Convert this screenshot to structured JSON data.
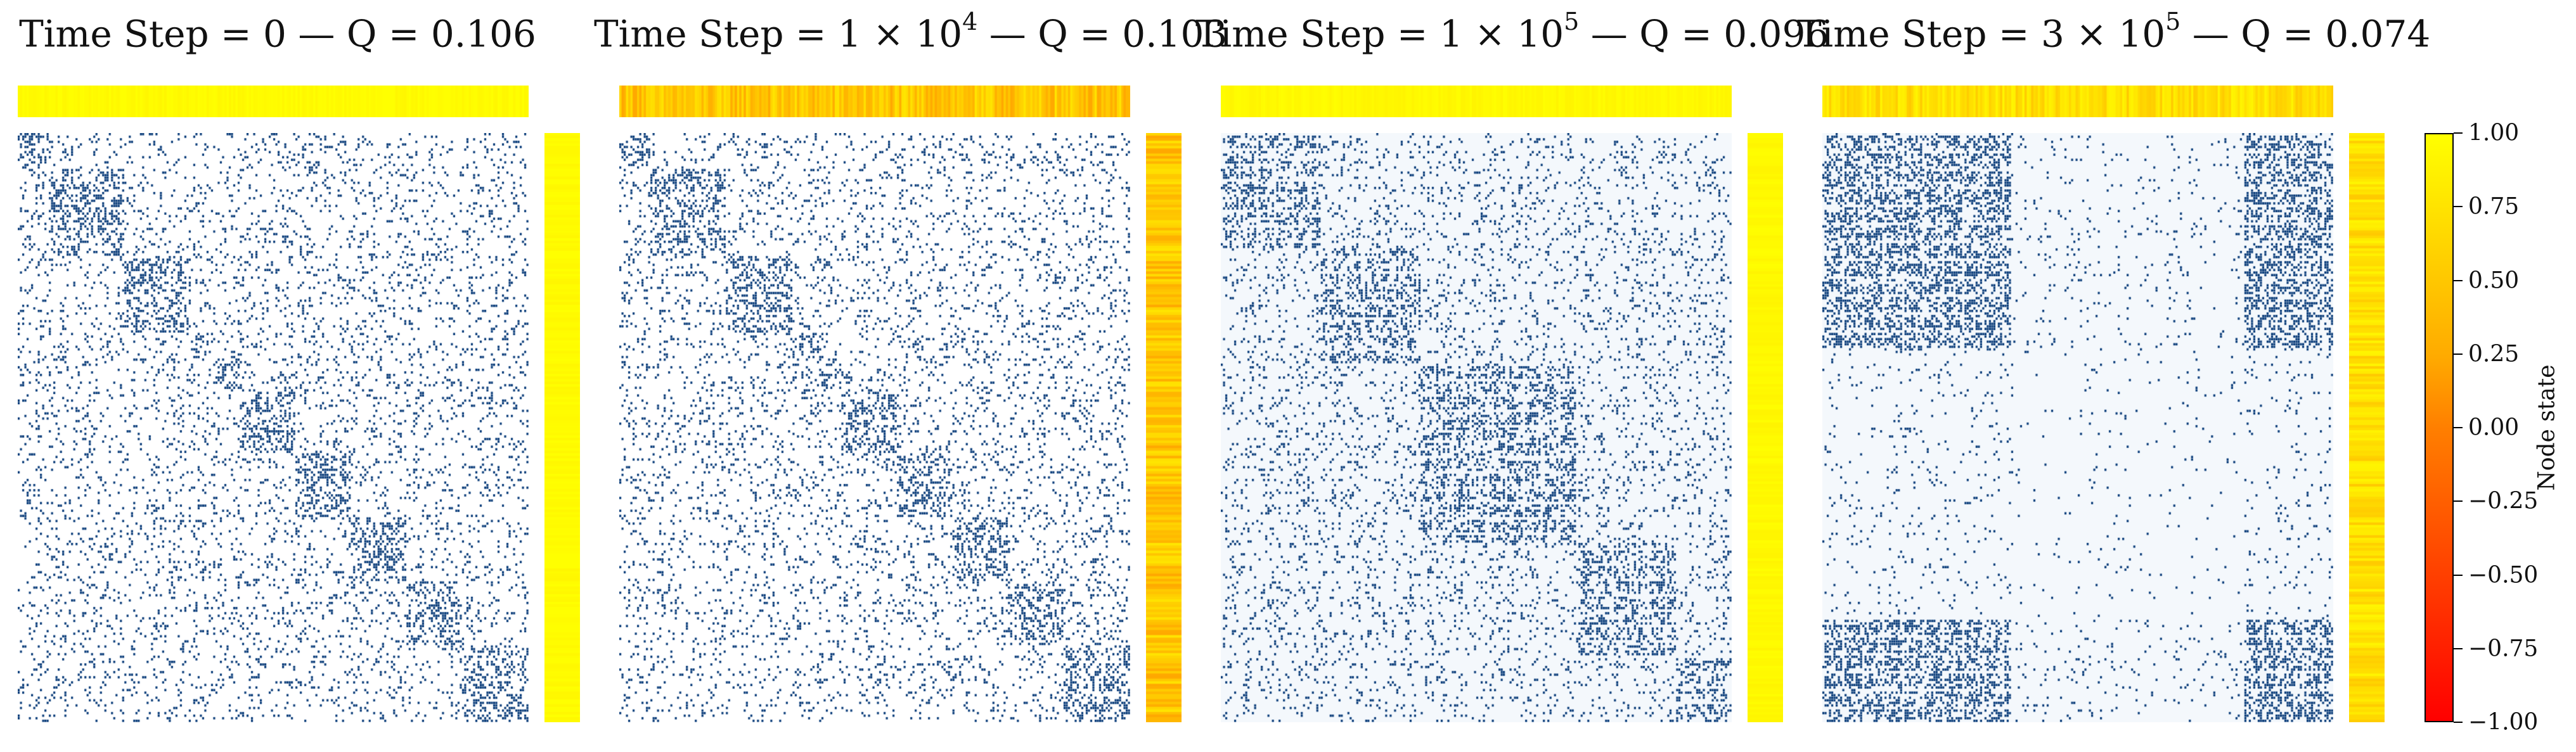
{
  "figure": {
    "panels": [
      {
        "title_base": "Time Step = 0",
        "title_exp": "",
        "title_q": " — Q = 0.106"
      },
      {
        "title_base": "Time Step = 1 × 10",
        "title_exp": "4",
        "title_q": " — Q = 0.103"
      },
      {
        "title_base": "Time Step = 1 × 10",
        "title_exp": "5",
        "title_q": " — Q = 0.096"
      },
      {
        "title_base": "Time Step = 3 × 10",
        "title_exp": "5",
        "title_q": " — Q = 0.074"
      }
    ],
    "colorbar": {
      "label": "Node state",
      "ticks": [
        "1.00",
        "0.75",
        "0.50",
        "0.25",
        "0.00",
        "−0.25",
        "−0.50",
        "−0.75",
        "−1.00"
      ]
    }
  },
  "chart_data": {
    "type": "heatmap",
    "description_of_encoding": "Adjacency matrices (dark blue = link) with node-state color strips (top and right) mapped to colormap autumn from -1.00 (red) to 1.00 (yellow).",
    "colormap": {
      "min": -1.0,
      "max": 1.0,
      "low_color": "#ff0000",
      "high_color": "#ffff00"
    },
    "link_color": "#0b3d7a",
    "panels": [
      {
        "time_step": 0,
        "modularity_Q": 0.106,
        "mean_node_state": 0.97,
        "structure": "diagonal-blocks"
      },
      {
        "time_step": 10000,
        "modularity_Q": 0.103,
        "mean_node_state": 0.55,
        "structure": "diagonal-blocks"
      },
      {
        "time_step": 100000,
        "modularity_Q": 0.096,
        "mean_node_state": 0.95,
        "structure": "mixed-blocks"
      },
      {
        "time_step": 300000,
        "modularity_Q": 0.074,
        "mean_node_state": 0.75,
        "structure": "large-blocks"
      }
    ]
  }
}
